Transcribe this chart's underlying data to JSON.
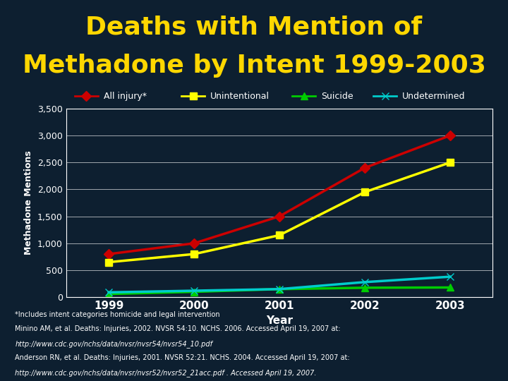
{
  "title_line1": "Deaths with Mention of",
  "title_line2": "Methadone by Intent 1999-2003",
  "title_color": "#FFD700",
  "title_fontsize": 26,
  "header_bg_color": "#1a6abf",
  "chart_bg_color": "#0d1f30",
  "years": [
    1999,
    2000,
    2001,
    2002,
    2003
  ],
  "series": {
    "All injury*": {
      "values": [
        800,
        1000,
        1500,
        2400,
        3000
      ],
      "color": "#cc0000",
      "marker": "D",
      "linewidth": 2.5
    },
    "Unintentional": {
      "values": [
        650,
        800,
        1150,
        1950,
        2500
      ],
      "color": "#ffff00",
      "marker": "s",
      "linewidth": 2.5
    },
    "Suicide": {
      "values": [
        60,
        100,
        150,
        175,
        180
      ],
      "color": "#00cc00",
      "marker": "^",
      "linewidth": 2.5
    },
    "Undetermined": {
      "values": [
        90,
        120,
        150,
        280,
        380
      ],
      "color": "#00cccc",
      "marker": "x",
      "linewidth": 2.5
    }
  },
  "ylabel": "Methadone Mentions",
  "xlabel": "Year",
  "ylim": [
    0,
    3500
  ],
  "yticks": [
    0,
    500,
    1000,
    1500,
    2000,
    2500,
    3000,
    3500
  ],
  "ytick_labels": [
    "0",
    "500",
    "1,000",
    "1,500",
    "2,000",
    "2,500",
    "3,000",
    "3,500"
  ],
  "grid_color": "#ffffff",
  "tick_color": "#ffffff",
  "axis_label_color": "#ffffff",
  "footnote_line1": "*Includes intent categories homicide and legal intervention",
  "footnote_line2": "Minino AM, et al. Deaths: Injuries, 2002. NVSR 54:10. NCHS. 2006. Accessed April 19, 2007 at:",
  "footnote_line3": "http://www.cdc.gov/nchs/data/nvsr/nvsr54/nvsr54_10.pdf",
  "footnote_line4": "Anderson RN, et al. Deaths: Injuries, 2001. NVSR 52:21. NCHS. 2004. Accessed April 19, 2007 at:",
  "footnote_line5": "http://www.cdc.gov/nchs/data/nvsr/nvsr52/nvsr52_21acc.pdf . Accessed April 19, 2007.",
  "footnote_color": "#ffffff"
}
